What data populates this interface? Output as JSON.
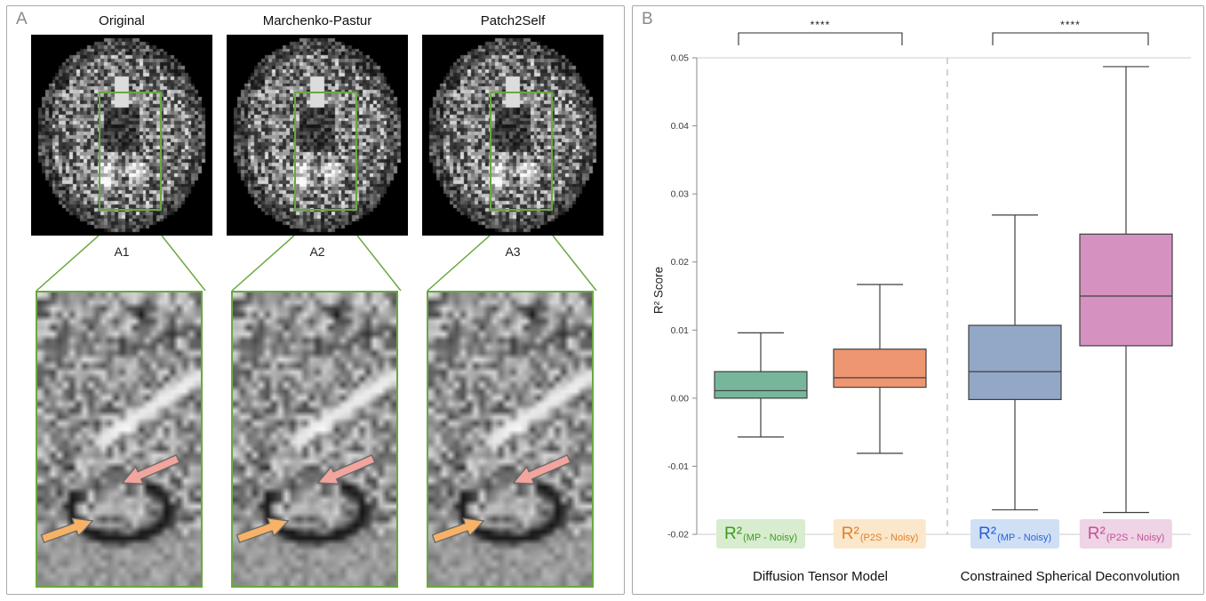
{
  "panel_a": {
    "label": "A",
    "roi_color": "#69a83f",
    "arrows": {
      "pink": "#f2a49e",
      "orange": "#f7b267"
    },
    "columns": [
      {
        "title": "Original",
        "sub": "A1"
      },
      {
        "title": "Marchenko-Pastur",
        "sub": "A2"
      },
      {
        "title": "Patch2Self",
        "sub": "A3"
      }
    ]
  },
  "panel_b": {
    "label": "B",
    "legend": [
      {
        "key": "mp-noisy-dtm",
        "main": "R²",
        "sub": "(MP - Noisy)",
        "bg": "#d8ecd0",
        "text_color": "#3f9b1d"
      },
      {
        "key": "p2s-noisy-dtm",
        "main": "R²",
        "sub": "(P2S - Noisy)",
        "bg": "#fbe7cb",
        "text_color": "#e0802a"
      },
      {
        "key": "mp-noisy-csd",
        "main": "R²",
        "sub": "(MP - Noisy)",
        "bg": "#cfe0f5",
        "text_color": "#2b5fd9"
      },
      {
        "key": "p2s-noisy-csd",
        "main": "R²",
        "sub": "(P2S - Noisy)",
        "bg": "#eed4e4",
        "text_color": "#c2519c"
      }
    ]
  },
  "chart_data": {
    "type": "boxplot",
    "title": "",
    "ylabel": "R² Score",
    "ylim": [
      -0.02,
      0.05
    ],
    "yticks": [
      0.05,
      0.04,
      0.03,
      0.02,
      0.01,
      0,
      -0.01,
      -0.02
    ],
    "grid": false,
    "groups": [
      "Diffusion Tensor Model",
      "Constrained Spherical Deconvolution"
    ],
    "boxes": [
      {
        "name": "R2 (MP - Noisy) - Diffusion Tensor Model",
        "color": "#76b79c",
        "whisker_low": -0.0057,
        "q1": 0.0,
        "median": 0.0011,
        "q3": 0.0039,
        "whisker_high": 0.0096
      },
      {
        "name": "R2 (P2S - Noisy) - Diffusion Tensor Model",
        "color": "#ee9671",
        "whisker_low": -0.0081,
        "q1": 0.0016,
        "median": 0.003,
        "q3": 0.0072,
        "whisker_high": 0.0167
      },
      {
        "name": "R2 (MP - Noisy) - Constrained Spherical Deconvolution",
        "color": "#93a8c7",
        "whisker_low": -0.0164,
        "q1": -0.0002,
        "median": 0.0039,
        "q3": 0.0107,
        "whisker_high": 0.0269
      },
      {
        "name": "R2 (P2S - Noisy) - Constrained Spherical Deconvolution",
        "color": "#d592c0",
        "whisker_low": -0.0168,
        "q1": 0.0077,
        "median": 0.015,
        "q3": 0.0241,
        "whisker_high": 0.0487
      }
    ],
    "significance": [
      {
        "pair": [
          0,
          1
        ],
        "label": "****"
      },
      {
        "pair": [
          2,
          3
        ],
        "label": "****"
      }
    ]
  }
}
